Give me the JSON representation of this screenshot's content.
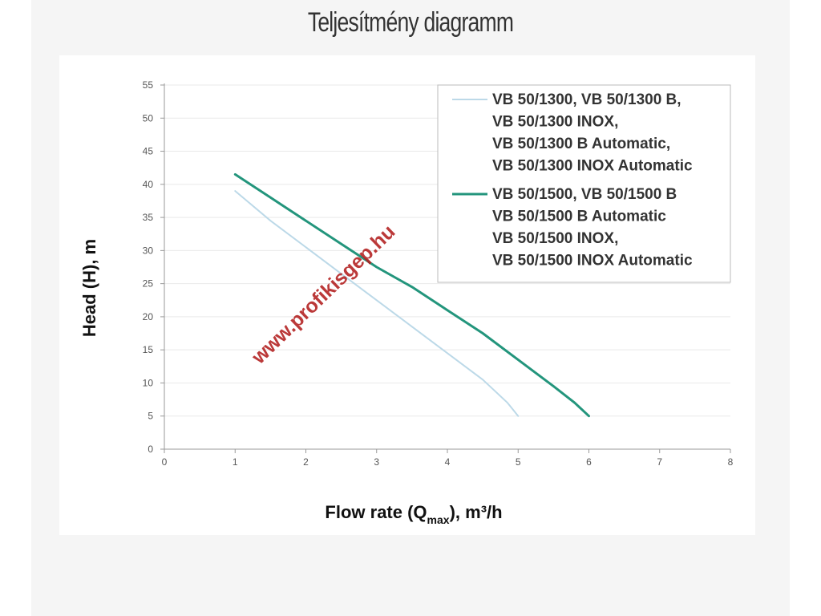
{
  "page": {
    "title": "Teljesítmény diagramm"
  },
  "colors": {
    "series_1": "#bcd9e8",
    "series_2": "#23957c",
    "axis": "#999999",
    "grid": "#e9e9e9",
    "watermark": "#b21e1e"
  },
  "watermark": "www.profikisgep.hu",
  "chart_data": {
    "type": "line",
    "title": "",
    "xlabel": "Flow rate (Q",
    "xlabel_sub": "max",
    "xlabel_tail": "), m³/h",
    "ylabel": "Head (H), m",
    "xlim": [
      0,
      8
    ],
    "ylim": [
      0,
      55
    ],
    "xticks": [
      0,
      1,
      2,
      3,
      4,
      5,
      6,
      7,
      8
    ],
    "yticks": [
      0,
      5,
      10,
      15,
      20,
      25,
      30,
      35,
      40,
      45,
      50,
      55
    ],
    "grid": true,
    "legend_position": "top-right",
    "series": [
      {
        "name": "VB 50/1300, VB 50/1300 B, VB 50/1300 INOX, VB 50/1300 B Automatic, VB 50/1300 INOX Automatic",
        "legend_lines": [
          "VB 50/1300, VB 50/1300 B,",
          "VB 50/1300 INOX,",
          "VB 50/1300 B Automatic,",
          "VB 50/1300 INOX Automatic"
        ],
        "color": "#bcd9e8",
        "x": [
          1,
          1.5,
          2,
          2.5,
          3,
          3.5,
          4,
          4.5,
          4.7,
          4.85,
          5
        ],
        "y": [
          39,
          34.5,
          30.5,
          26.5,
          22.5,
          18.5,
          14.5,
          10.5,
          8.5,
          7,
          5
        ]
      },
      {
        "name": "VB 50/1500, VB 50/1500 B VB 50/1500 B Automatic VB 50/1500 INOX, VB 50/1500 INOX Automatic",
        "legend_lines": [
          "VB 50/1500, VB 50/1500 B",
          "VB 50/1500 B Automatic",
          "VB 50/1500 INOX,",
          "VB 50/1500 INOX Automatic"
        ],
        "color": "#23957c",
        "x": [
          1,
          1.5,
          2,
          2.5,
          3,
          3.5,
          4,
          4.5,
          5,
          5.5,
          5.8,
          6
        ],
        "y": [
          41.5,
          38,
          34.5,
          31,
          27.5,
          24.5,
          21,
          17.5,
          13.5,
          9.5,
          7,
          5
        ]
      }
    ]
  }
}
